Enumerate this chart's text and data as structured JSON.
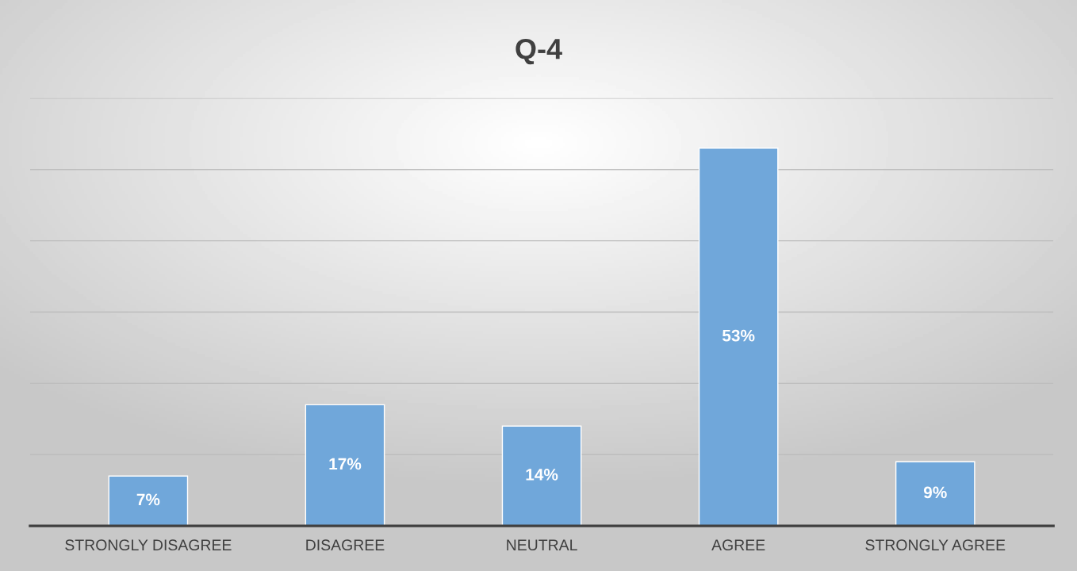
{
  "chart_data": {
    "type": "bar",
    "title": "Q-4",
    "categories": [
      "STRONGLY DISAGREE",
      "DISAGREE",
      "NEUTRAL",
      "AGREE",
      "STRONGLY AGREE"
    ],
    "values": [
      7,
      17,
      14,
      53,
      9
    ],
    "value_labels": [
      "7%",
      "17%",
      "14%",
      "53%",
      "9%"
    ],
    "color": "#70a7da",
    "ylim": [
      0,
      60
    ],
    "yticks": [
      {
        "value": 0,
        "label": null
      },
      {
        "value": 10,
        "label": null
      },
      {
        "value": 20,
        "label": null
      },
      {
        "value": 30,
        "label": null
      },
      {
        "value": 40,
        "label": null
      },
      {
        "value": 50,
        "label": null
      },
      {
        "value": 60,
        "label": null
      }
    ],
    "tick_labels": "x",
    "grid": "y"
  }
}
